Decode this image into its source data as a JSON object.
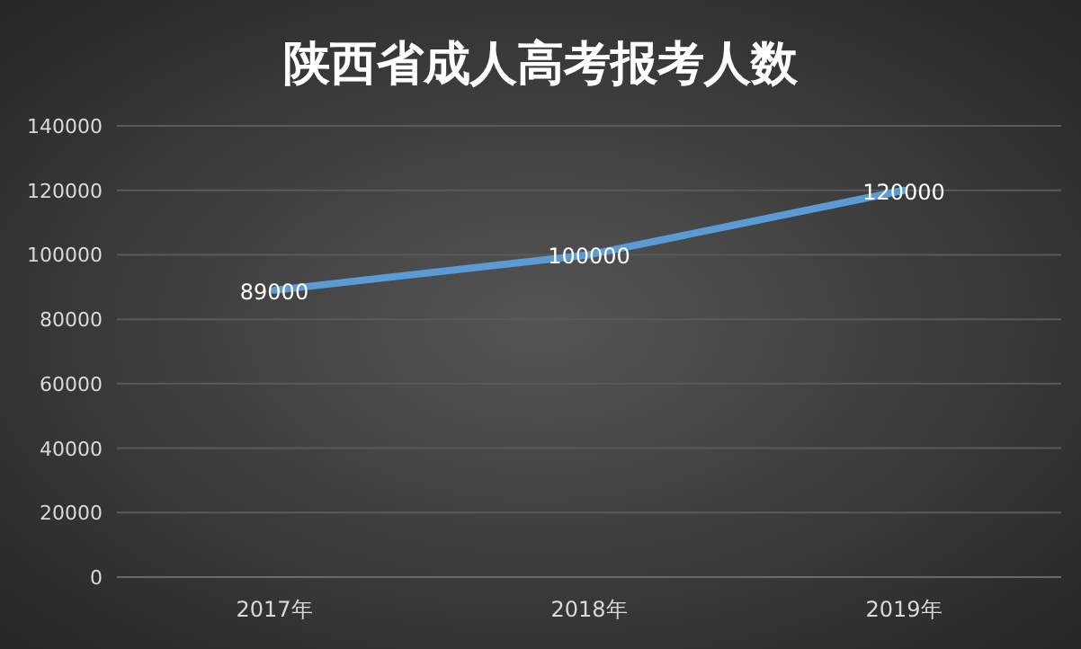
{
  "chart_data": {
    "type": "line",
    "title": "陕西省成人高考报考人数",
    "categories": [
      "2017年",
      "2018年",
      "2019年"
    ],
    "series": [
      {
        "color": "#5b9bd5",
        "values": [
          89000,
          100000,
          120000
        ]
      }
    ],
    "ylim": [
      0,
      140000
    ],
    "yticks": [
      0,
      20000,
      40000,
      60000,
      80000,
      100000,
      120000,
      140000
    ],
    "grid": "y",
    "data_labels": true,
    "marker": "none",
    "line_style": "solid"
  }
}
